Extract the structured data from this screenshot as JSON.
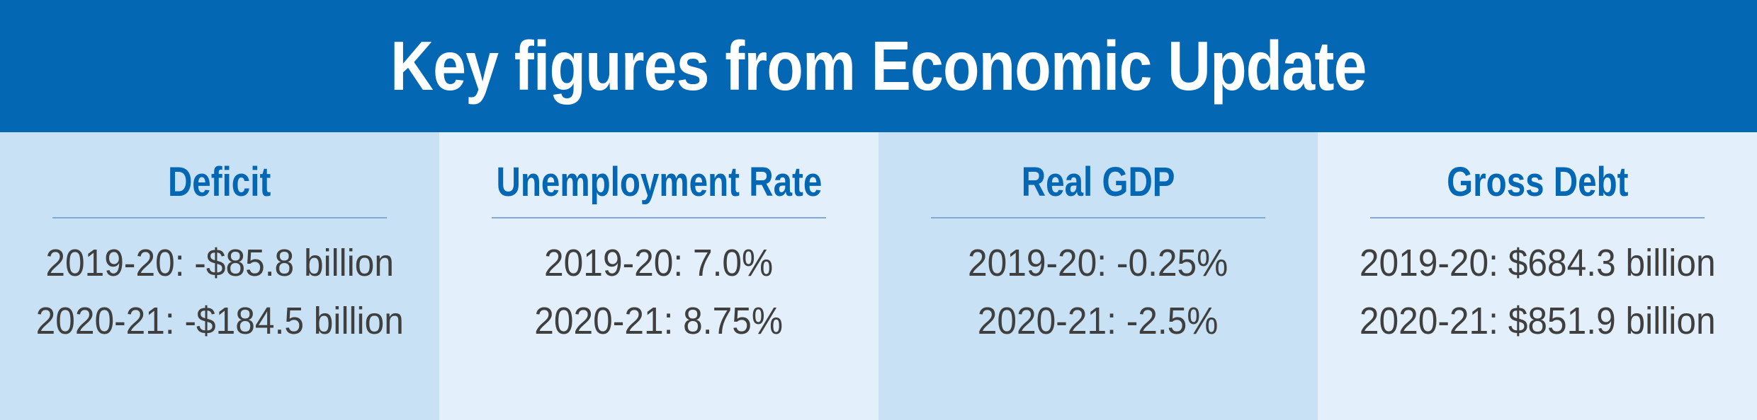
{
  "header": {
    "title": "Key figures from Economic Update"
  },
  "colors": {
    "banner": "#0467b4",
    "panel_dark": "#c9e1f4",
    "panel_light": "#e3f0fb",
    "heading_text": "#0467b4",
    "body_text": "#3f3f3f",
    "divider": "#7ea9d6"
  },
  "panels": [
    {
      "title": "Deficit",
      "lines": [
        "2019-20: -$85.8 billion",
        "2020-21: -$184.5 billion"
      ]
    },
    {
      "title": "Unemployment Rate",
      "lines": [
        "2019-20: 7.0%",
        "2020-21: 8.75%"
      ]
    },
    {
      "title": "Real GDP",
      "lines": [
        "2019-20: -0.25%",
        "2020-21: -2.5%"
      ]
    },
    {
      "title": "Gross Debt",
      "lines": [
        "2019-20: $684.3 billion",
        "2020-21: $851.9 billion"
      ]
    }
  ]
}
